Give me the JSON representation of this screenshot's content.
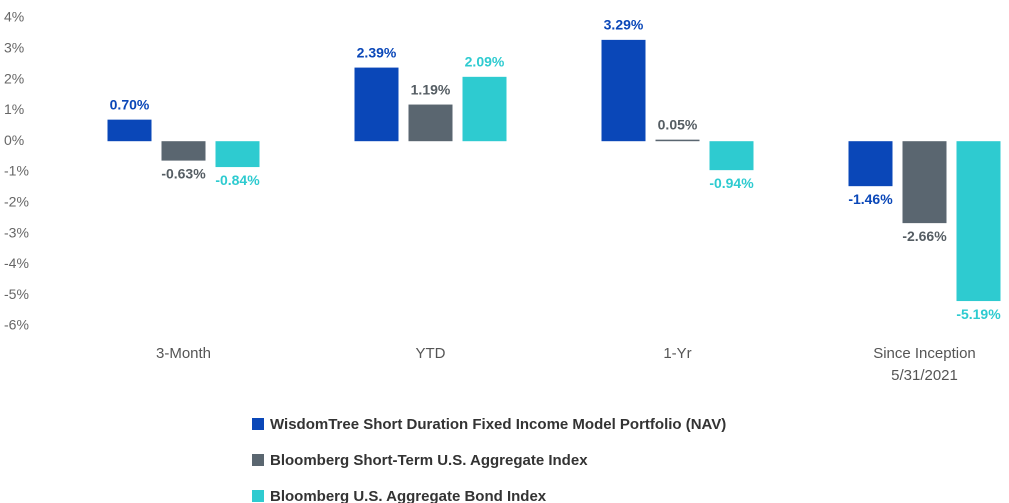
{
  "chart_data": {
    "type": "bar",
    "categories": [
      "3-Month",
      "YTD",
      "1-Yr",
      "Since Inception\n5/31/2021"
    ],
    "series": [
      {
        "name": "WisdomTree Short Duration Fixed Income Model Portfolio (NAV)",
        "color": "#0a47b8",
        "label_color": "#0a47b8",
        "values": [
          0.7,
          2.39,
          3.29,
          -1.46
        ],
        "value_labels": [
          "0.70%",
          "2.39%",
          "3.29%",
          "-1.46%"
        ]
      },
      {
        "name": "Bloomberg Short-Term U.S. Aggregate Index",
        "color": "#5a6670",
        "label_color": "#555d63",
        "values": [
          -0.63,
          1.19,
          0.05,
          -2.66
        ],
        "value_labels": [
          "-0.63%",
          "1.19%",
          "0.05%",
          "-2.66%"
        ]
      },
      {
        "name": "Bloomberg U.S. Aggregate Bond Index",
        "color": "#2ecbd0",
        "label_color": "#2ecbd0",
        "values": [
          -0.84,
          2.09,
          -0.94,
          -5.19
        ],
        "value_labels": [
          "-0.84%",
          "2.09%",
          "-0.94%",
          "-5.19%"
        ]
      }
    ],
    "ylim": [
      -6,
      4
    ],
    "yticks": [
      {
        "value": 4,
        "label": "4%"
      },
      {
        "value": 3,
        "label": "3%"
      },
      {
        "value": 2,
        "label": "2%"
      },
      {
        "value": 1,
        "label": "1%"
      },
      {
        "value": 0,
        "label": "0%"
      },
      {
        "value": -1,
        "label": "-1%"
      },
      {
        "value": -2,
        "label": "-2%"
      },
      {
        "value": -3,
        "label": "-3%"
      },
      {
        "value": -4,
        "label": "-4%"
      },
      {
        "value": -5,
        "label": "-5%"
      },
      {
        "value": -6,
        "label": "-6%"
      }
    ],
    "grid": false
  }
}
